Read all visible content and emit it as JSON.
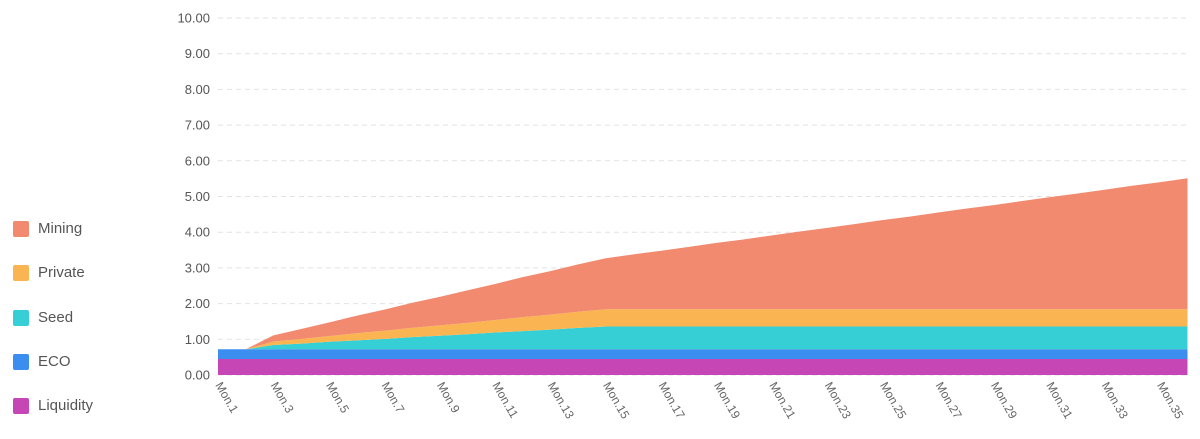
{
  "chart_data": {
    "type": "area",
    "stacked": true,
    "grid": true,
    "legend_position": "left",
    "ylim": [
      0,
      10
    ],
    "y_ticks": [
      "0.00",
      "1.00",
      "2.00",
      "3.00",
      "4.00",
      "5.00",
      "6.00",
      "7.00",
      "8.00",
      "9.00",
      "10.00"
    ],
    "x": [
      1,
      2,
      3,
      4,
      5,
      6,
      7,
      8,
      9,
      10,
      11,
      12,
      13,
      14,
      15,
      16,
      17,
      18,
      19,
      20,
      21,
      22,
      23,
      24,
      25,
      26,
      27,
      28,
      29,
      30,
      31,
      32,
      33,
      34,
      35,
      36
    ],
    "x_ticks": [
      "Mon.1",
      "Mon.3",
      "Mon.5",
      "Mon.7",
      "Mon.9",
      "Mon.11",
      "Mon.13",
      "Mon.15",
      "Mon.17",
      "Mon.19",
      "Mon.21",
      "Mon.23",
      "Mon.25",
      "Mon.27",
      "Mon.29",
      "Mon.31",
      "Mon.33",
      "Mon.35"
    ],
    "series": [
      {
        "name": "Mining",
        "color": "#F28A70",
        "values": [
          0,
          0,
          0.17,
          0.28,
          0.38,
          0.49,
          0.59,
          0.7,
          0.8,
          0.91,
          1.01,
          1.12,
          1.22,
          1.33,
          1.43,
          1.54,
          1.64,
          1.75,
          1.86,
          1.96,
          2.07,
          2.18,
          2.28,
          2.39,
          2.5,
          2.6,
          2.71,
          2.82,
          2.92,
          3.03,
          3.14,
          3.24,
          3.35,
          3.46,
          3.56,
          3.67
        ]
      },
      {
        "name": "Private",
        "color": "#FAB552",
        "values": [
          0,
          0,
          0.1,
          0.13,
          0.16,
          0.2,
          0.23,
          0.26,
          0.29,
          0.32,
          0.35,
          0.39,
          0.42,
          0.45,
          0.48,
          0.48,
          0.48,
          0.48,
          0.48,
          0.48,
          0.48,
          0.48,
          0.48,
          0.48,
          0.48,
          0.48,
          0.48,
          0.48,
          0.48,
          0.48,
          0.48,
          0.48,
          0.48,
          0.48,
          0.48,
          0.48
        ]
      },
      {
        "name": "Seed",
        "color": "#37CFD6",
        "values": [
          0,
          0,
          0.12,
          0.16,
          0.21,
          0.25,
          0.29,
          0.34,
          0.38,
          0.42,
          0.47,
          0.51,
          0.55,
          0.6,
          0.64,
          0.64,
          0.64,
          0.64,
          0.64,
          0.64,
          0.64,
          0.64,
          0.64,
          0.64,
          0.64,
          0.64,
          0.64,
          0.64,
          0.64,
          0.64,
          0.64,
          0.64,
          0.64,
          0.64,
          0.64,
          0.64
        ]
      },
      {
        "name": "ECO",
        "color": "#3B8EEF",
        "values": [
          0.27,
          0.27,
          0.27,
          0.27,
          0.27,
          0.27,
          0.27,
          0.27,
          0.27,
          0.27,
          0.27,
          0.27,
          0.27,
          0.27,
          0.27,
          0.27,
          0.27,
          0.27,
          0.27,
          0.27,
          0.27,
          0.27,
          0.27,
          0.27,
          0.27,
          0.27,
          0.27,
          0.27,
          0.27,
          0.27,
          0.27,
          0.27,
          0.27,
          0.27,
          0.27,
          0.27
        ]
      },
      {
        "name": "Liquidity",
        "color": "#C746B5",
        "values": [
          0.45,
          0.45,
          0.45,
          0.45,
          0.45,
          0.45,
          0.45,
          0.45,
          0.45,
          0.45,
          0.45,
          0.45,
          0.45,
          0.45,
          0.45,
          0.45,
          0.45,
          0.45,
          0.45,
          0.45,
          0.45,
          0.45,
          0.45,
          0.45,
          0.45,
          0.45,
          0.45,
          0.45,
          0.45,
          0.45,
          0.45,
          0.45,
          0.45,
          0.45,
          0.45,
          0.45
        ]
      }
    ]
  }
}
